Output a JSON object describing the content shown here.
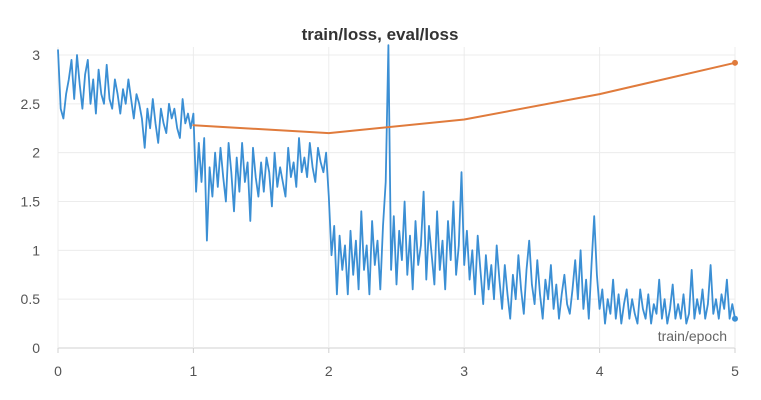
{
  "colors": {
    "train": "#3b8fd4",
    "eval": "#e07b3c",
    "grid": "#ececec",
    "axis": "#d0d0d0"
  },
  "chart_data": {
    "type": "line",
    "title": "train/loss, eval/loss",
    "xlabel": "train/epoch",
    "ylabel": "",
    "xlim": [
      0,
      5
    ],
    "ylim": [
      0,
      3
    ],
    "x_ticks": [
      "0",
      "1",
      "2",
      "3",
      "4",
      "5"
    ],
    "y_ticks": [
      "0",
      "0.5",
      "1",
      "1.5",
      "2",
      "2.5",
      "3"
    ],
    "grid": true,
    "series": [
      {
        "key": "train",
        "x": [
          0.0,
          0.02,
          0.04,
          0.06,
          0.08,
          0.1,
          0.12,
          0.14,
          0.16,
          0.18,
          0.2,
          0.22,
          0.24,
          0.26,
          0.28,
          0.3,
          0.32,
          0.34,
          0.36,
          0.38,
          0.4,
          0.42,
          0.44,
          0.46,
          0.48,
          0.5,
          0.52,
          0.54,
          0.56,
          0.58,
          0.6,
          0.62,
          0.64,
          0.66,
          0.68,
          0.7,
          0.72,
          0.74,
          0.76,
          0.78,
          0.8,
          0.82,
          0.84,
          0.86,
          0.88,
          0.9,
          0.92,
          0.94,
          0.96,
          0.98,
          1.0,
          1.02,
          1.04,
          1.06,
          1.08,
          1.1,
          1.12,
          1.14,
          1.16,
          1.18,
          1.2,
          1.22,
          1.24,
          1.26,
          1.28,
          1.3,
          1.32,
          1.34,
          1.36,
          1.38,
          1.4,
          1.42,
          1.44,
          1.46,
          1.48,
          1.5,
          1.52,
          1.54,
          1.56,
          1.58,
          1.6,
          1.62,
          1.64,
          1.66,
          1.68,
          1.7,
          1.72,
          1.74,
          1.76,
          1.78,
          1.8,
          1.82,
          1.84,
          1.86,
          1.88,
          1.9,
          1.92,
          1.94,
          1.96,
          1.98,
          2.0,
          2.02,
          2.04,
          2.06,
          2.08,
          2.1,
          2.12,
          2.14,
          2.16,
          2.18,
          2.2,
          2.22,
          2.24,
          2.26,
          2.28,
          2.3,
          2.32,
          2.34,
          2.36,
          2.38,
          2.4,
          2.42,
          2.44,
          2.46,
          2.48,
          2.5,
          2.52,
          2.54,
          2.56,
          2.58,
          2.6,
          2.62,
          2.64,
          2.66,
          2.68,
          2.7,
          2.72,
          2.74,
          2.76,
          2.78,
          2.8,
          2.82,
          2.84,
          2.86,
          2.88,
          2.9,
          2.92,
          2.94,
          2.96,
          2.98,
          3.0,
          3.02,
          3.04,
          3.06,
          3.08,
          3.1,
          3.12,
          3.14,
          3.16,
          3.18,
          3.2,
          3.22,
          3.24,
          3.26,
          3.28,
          3.3,
          3.32,
          3.34,
          3.36,
          3.38,
          3.4,
          3.42,
          3.44,
          3.46,
          3.48,
          3.5,
          3.52,
          3.54,
          3.56,
          3.58,
          3.6,
          3.62,
          3.64,
          3.66,
          3.68,
          3.7,
          3.72,
          3.74,
          3.76,
          3.78,
          3.8,
          3.82,
          3.84,
          3.86,
          3.88,
          3.9,
          3.92,
          3.94,
          3.96,
          3.98,
          4.0,
          4.02,
          4.04,
          4.06,
          4.08,
          4.1,
          4.12,
          4.14,
          4.16,
          4.18,
          4.2,
          4.22,
          4.24,
          4.26,
          4.28,
          4.3,
          4.32,
          4.34,
          4.36,
          4.38,
          4.4,
          4.42,
          4.44,
          4.46,
          4.48,
          4.5,
          4.52,
          4.54,
          4.56,
          4.58,
          4.6,
          4.62,
          4.64,
          4.66,
          4.68,
          4.7,
          4.72,
          4.74,
          4.76,
          4.78,
          4.8,
          4.82,
          4.84,
          4.86,
          4.88,
          4.9,
          4.92,
          4.94,
          4.96,
          4.98,
          5.0
        ],
        "y": [
          3.05,
          2.45,
          2.35,
          2.6,
          2.75,
          2.95,
          2.55,
          3.0,
          2.7,
          2.45,
          2.8,
          2.95,
          2.5,
          2.75,
          2.4,
          2.85,
          2.6,
          2.5,
          2.9,
          2.55,
          2.45,
          2.75,
          2.6,
          2.4,
          2.65,
          2.5,
          2.75,
          2.55,
          2.35,
          2.6,
          2.5,
          2.35,
          2.05,
          2.45,
          2.25,
          2.55,
          2.3,
          2.1,
          2.45,
          2.3,
          2.2,
          2.5,
          2.35,
          2.45,
          2.25,
          2.15,
          2.55,
          2.3,
          2.4,
          2.25,
          2.4,
          1.6,
          2.1,
          1.7,
          2.15,
          1.1,
          1.85,
          1.55,
          2.0,
          1.65,
          2.05,
          1.75,
          1.5,
          2.1,
          1.8,
          1.4,
          1.95,
          1.6,
          2.1,
          1.7,
          1.9,
          1.3,
          2.05,
          1.75,
          1.55,
          1.9,
          1.6,
          1.95,
          1.8,
          1.45,
          2.0,
          1.65,
          1.85,
          1.7,
          1.55,
          2.05,
          1.75,
          1.9,
          1.65,
          2.15,
          1.8,
          1.95,
          1.75,
          2.1,
          1.85,
          1.7,
          2.05,
          1.9,
          1.8,
          2.0,
          1.55,
          0.95,
          1.25,
          0.55,
          1.15,
          0.8,
          1.05,
          0.55,
          1.2,
          0.75,
          1.1,
          0.6,
          1.4,
          0.8,
          1.05,
          0.55,
          1.3,
          0.85,
          1.1,
          0.6,
          1.25,
          1.7,
          3.1,
          0.8,
          1.35,
          0.65,
          1.2,
          0.9,
          1.5,
          0.75,
          1.15,
          0.6,
          1.3,
          0.85,
          1.05,
          1.6,
          0.7,
          1.25,
          0.95,
          0.65,
          1.4,
          0.8,
          1.1,
          0.6,
          1.3,
          0.9,
          1.5,
          0.75,
          1.05,
          1.8,
          0.85,
          1.2,
          0.7,
          1.0,
          0.55,
          1.15,
          0.8,
          0.45,
          0.95,
          0.6,
          0.85,
          0.5,
          1.05,
          0.7,
          0.4,
          0.85,
          0.55,
          0.3,
          0.75,
          0.5,
          0.95,
          0.6,
          0.35,
          0.8,
          1.1,
          0.65,
          0.45,
          0.9,
          0.55,
          0.3,
          0.7,
          0.5,
          0.85,
          0.4,
          0.65,
          0.3,
          0.55,
          0.75,
          0.45,
          0.35,
          0.6,
          0.9,
          0.5,
          1.0,
          0.4,
          0.7,
          0.3,
          0.85,
          1.35,
          0.75,
          0.4,
          0.6,
          0.25,
          0.5,
          0.35,
          0.7,
          0.3,
          0.55,
          0.25,
          0.45,
          0.6,
          0.3,
          0.5,
          0.35,
          0.25,
          0.6,
          0.4,
          0.3,
          0.55,
          0.25,
          0.45,
          0.35,
          0.7,
          0.3,
          0.5,
          0.25,
          0.4,
          0.65,
          0.3,
          0.45,
          0.3,
          0.55,
          0.25,
          0.35,
          0.8,
          0.3,
          0.5,
          0.35,
          0.6,
          0.3,
          0.45,
          0.85,
          0.35,
          0.5,
          0.3,
          0.55,
          0.4,
          0.7,
          0.3,
          0.45,
          0.3
        ]
      },
      {
        "key": "eval",
        "x": [
          1.0,
          2.0,
          3.0,
          4.0,
          5.0
        ],
        "y": [
          2.28,
          2.2,
          2.34,
          2.6,
          2.92
        ]
      }
    ]
  }
}
